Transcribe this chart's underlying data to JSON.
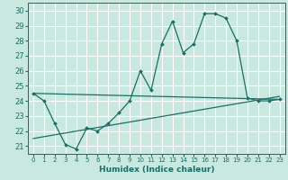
{
  "xlabel": "Humidex (Indice chaleur)",
  "bg_color": "#c8e8e0",
  "grid_color": "#ffffff",
  "line_color": "#1a6e64",
  "xlim": [
    -0.5,
    23.5
  ],
  "ylim": [
    20.5,
    30.5
  ],
  "xticks": [
    0,
    1,
    2,
    3,
    4,
    5,
    6,
    7,
    8,
    9,
    10,
    11,
    12,
    13,
    14,
    15,
    16,
    17,
    18,
    19,
    20,
    21,
    22,
    23
  ],
  "yticks": [
    21,
    22,
    23,
    24,
    25,
    26,
    27,
    28,
    29,
    30
  ],
  "main_x": [
    0,
    1,
    2,
    3,
    4,
    5,
    6,
    7,
    8,
    9,
    10,
    11,
    12,
    13,
    14,
    15,
    16,
    17,
    18,
    19,
    20,
    21,
    22,
    23
  ],
  "main_y": [
    24.5,
    24.0,
    22.5,
    21.1,
    20.8,
    22.2,
    22.0,
    22.5,
    23.2,
    24.0,
    26.0,
    24.7,
    27.8,
    29.3,
    27.2,
    27.8,
    29.8,
    29.8,
    29.5,
    28.0,
    24.2,
    24.0,
    24.0,
    24.1
  ],
  "line2_x": [
    0,
    23
  ],
  "line2_y": [
    24.5,
    24.1
  ],
  "line3_x": [
    0,
    23
  ],
  "line3_y": [
    21.5,
    24.3
  ]
}
